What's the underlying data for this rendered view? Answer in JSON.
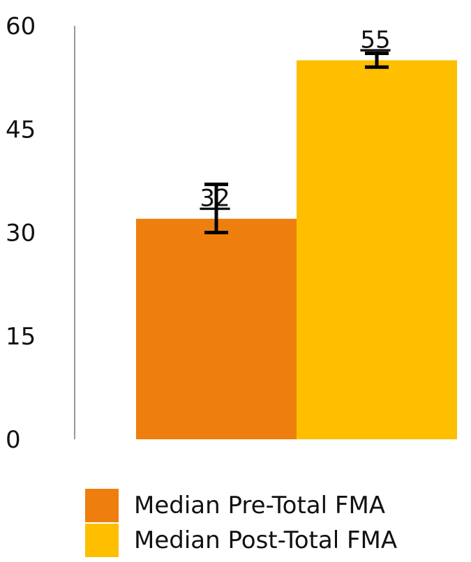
{
  "chart_data": {
    "type": "bar",
    "title": "",
    "xlabel": "",
    "ylabel": "",
    "ylim": [
      0,
      60
    ],
    "yticks": [
      0,
      15,
      30,
      45,
      60
    ],
    "grid": false,
    "legend_position": "bottom",
    "series": [
      {
        "name": "Median Pre-Total FMA",
        "value": 32,
        "label": "32",
        "error_low": 30,
        "error_high": 37,
        "color": "#ee7f0e"
      },
      {
        "name": "Median Post-Total FMA",
        "value": 55,
        "label": "55",
        "error_low": 54,
        "error_high": 56,
        "color": "#fdbf00"
      }
    ]
  }
}
